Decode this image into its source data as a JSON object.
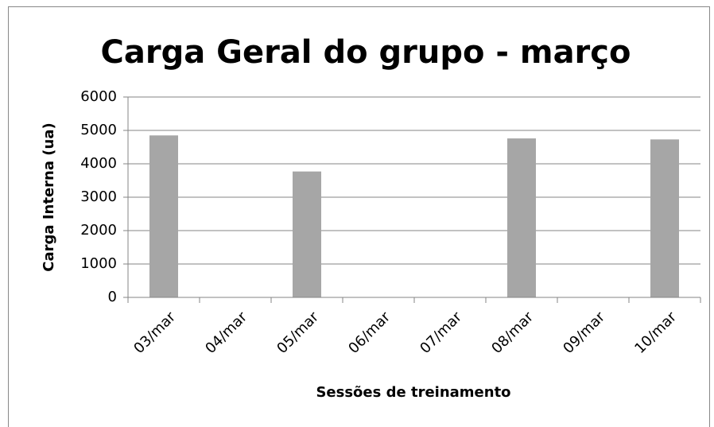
{
  "chart_data": {
    "type": "bar",
    "title": "Carga Geral do grupo - março",
    "xlabel": "Sessões de treinamento",
    "ylabel": "Carga Interna (ua)",
    "categories": [
      "03/mar",
      "04/mar",
      "05/mar",
      "06/mar",
      "07/mar",
      "08/mar",
      "09/mar",
      "10/mar"
    ],
    "values": [
      4850,
      null,
      3770,
      null,
      null,
      4760,
      null,
      4730
    ],
    "color": "#a6a6a6",
    "ylim": [
      0,
      6000
    ],
    "yticks": [
      0,
      1000,
      2000,
      3000,
      4000,
      5000,
      6000
    ],
    "grid": true
  }
}
